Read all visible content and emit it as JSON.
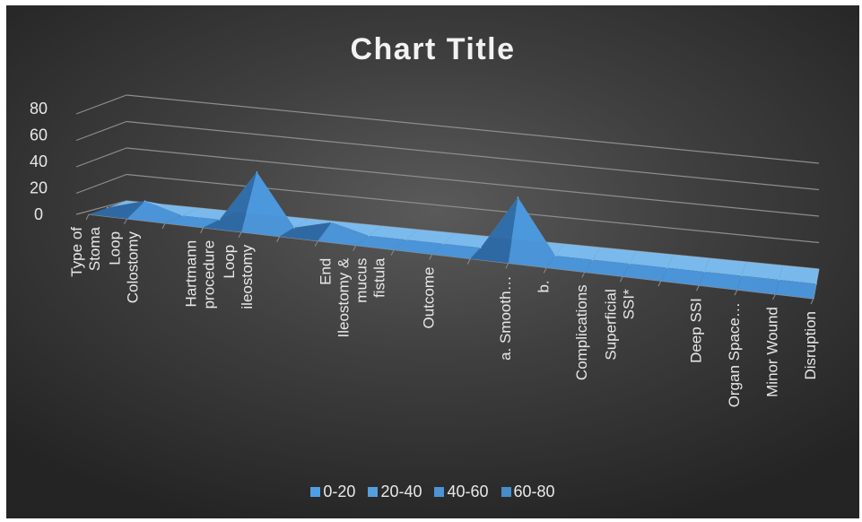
{
  "chart_data": {
    "type": "area",
    "title": "Chart Title",
    "categories": [
      "Type of Stoma",
      "Loop Colostomy",
      "",
      "Hartmann procedure",
      "Loop ileostomy",
      "",
      "",
      "End Ileostomy & mucus fistula",
      "",
      "Outcome",
      "",
      "a. Smooth…",
      "b.",
      "Complications",
      "Superficial SSI*",
      "",
      "Deep SSI",
      "Organ Space…",
      "Minor Wound",
      "Disruption"
    ],
    "values": [
      0,
      8,
      0,
      0,
      39,
      0,
      7,
      0,
      0,
      0,
      0,
      41,
      0,
      0,
      0,
      0,
      0,
      0,
      0,
      0
    ],
    "ylim": [
      0,
      80
    ],
    "yticks": [
      "0",
      "20",
      "40",
      "60",
      "80"
    ],
    "legend": [
      "0-20",
      "20-40",
      "40-60",
      "60-80"
    ],
    "legend_position": "bottom",
    "grid": true,
    "colors": {
      "surface": "#4a97dc",
      "surface_light": "#7dc0f5",
      "surface_dark": "#2e6aa6",
      "legend": [
        "#4f9fe5",
        "#569fde",
        "#4b94d6",
        "#478dcc"
      ],
      "grid": "#8d8d8d",
      "text": "#e8e8e8"
    }
  }
}
